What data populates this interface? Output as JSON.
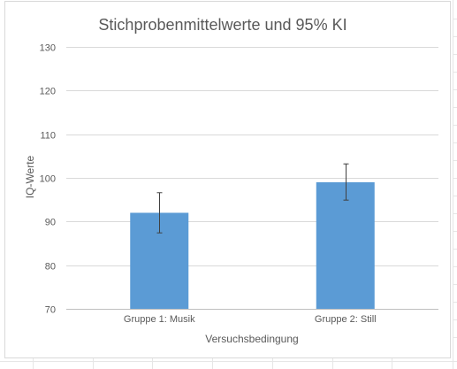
{
  "chart_data": {
    "type": "bar",
    "title": "Stichprobenmittelwerte und 95% KI",
    "xlabel": "Versuchsbedingung",
    "ylabel": "IQ-Werte",
    "categories": [
      "Gruppe 1: Musik",
      "Gruppe 2: Still"
    ],
    "values": [
      92,
      99
    ],
    "error_bars": [
      {
        "low": 87.4,
        "high": 96.6
      },
      {
        "low": 94.9,
        "high": 103.2
      }
    ],
    "ylim": [
      70,
      130
    ],
    "yticks": [
      "70",
      "80",
      "90",
      "100",
      "110",
      "120",
      "130"
    ],
    "grid": true,
    "legend": "none",
    "bar_color": "#5b9bd5"
  }
}
